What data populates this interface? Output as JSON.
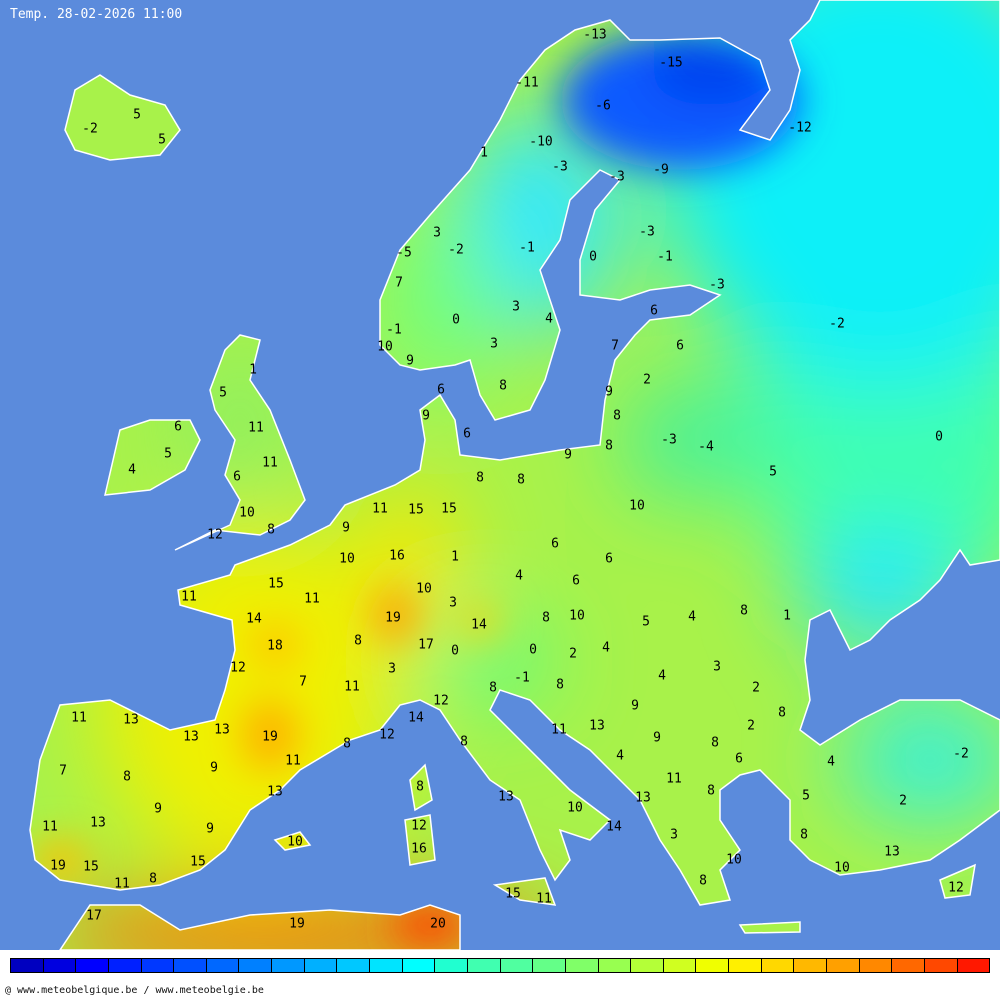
{
  "header": {
    "title": "Temp. 28-02-2026 11:00"
  },
  "footer": {
    "credit": "@ www.meteobelgique.be / www.meteobelgie.be"
  },
  "colors": {
    "sea": "#5b8bdc",
    "land_border": "#ffffff",
    "label": "#000000"
  },
  "colorbar": {
    "colors": [
      "#0000c0",
      "#0000e0",
      "#0000ff",
      "#0020ff",
      "#0038ff",
      "#0050ff",
      "#0068ff",
      "#0080ff",
      "#0098ff",
      "#00b0ff",
      "#00c8ff",
      "#00e4ff",
      "#00ffff",
      "#20ffd0",
      "#40ffb0",
      "#50ffa0",
      "#64ff88",
      "#80ff68",
      "#98ff50",
      "#b4ff38",
      "#d0ff20",
      "#f0ff00",
      "#fff000",
      "#ffd800",
      "#ffb800",
      "#ffa000",
      "#ff8800",
      "#ff6800",
      "#ff4800",
      "#ff1800"
    ]
  },
  "map": {
    "labels": [
      "-13",
      "-15",
      "-11",
      "-6",
      "-12",
      "-10",
      "1",
      "-3",
      "-3",
      "-9",
      "3",
      "-2",
      "-1",
      "-3",
      "-5",
      "0",
      "-1",
      "7",
      "-3",
      "3",
      "6",
      "-2",
      "0",
      "4",
      "-1",
      "10",
      "3",
      "6",
      "9",
      "7",
      "2",
      "8",
      "6",
      "9",
      "9",
      "8",
      "-3",
      "-4",
      "6",
      "8",
      "0",
      "9",
      "5",
      "8",
      "8",
      "10",
      "11",
      "15",
      "15",
      "9",
      "6",
      "1",
      "6",
      "16",
      "10",
      "4",
      "6",
      "10",
      "15",
      "11",
      "11",
      "3",
      "8",
      "10",
      "8",
      "1",
      "4",
      "5",
      "19",
      "14",
      "14",
      "18",
      "17",
      "0",
      "0",
      "2",
      "4",
      "8",
      "3",
      "3",
      "12",
      "7",
      "11",
      "-1",
      "8",
      "8",
      "4",
      "2",
      "12",
      "14",
      "9",
      "8",
      "2",
      "11",
      "13",
      "13",
      "13",
      "19",
      "12",
      "11",
      "13",
      "9",
      "8",
      "8",
      "8",
      "4",
      "6",
      "4",
      "-2",
      "7",
      "8",
      "9",
      "11",
      "11",
      "8",
      "13",
      "8",
      "5",
      "2",
      "13",
      "9",
      "10",
      "13",
      "11",
      "13",
      "9",
      "12",
      "14",
      "3",
      "8",
      "10",
      "16",
      "13",
      "19",
      "15",
      "15",
      "10",
      "10",
      "11",
      "8",
      "8",
      "15",
      "11",
      "12",
      "17",
      "19",
      "20",
      "5",
      "5",
      "-2",
      "1",
      "5",
      "11",
      "6",
      "5",
      "4",
      "11",
      "6",
      "10",
      "8",
      "12"
    ]
  }
}
